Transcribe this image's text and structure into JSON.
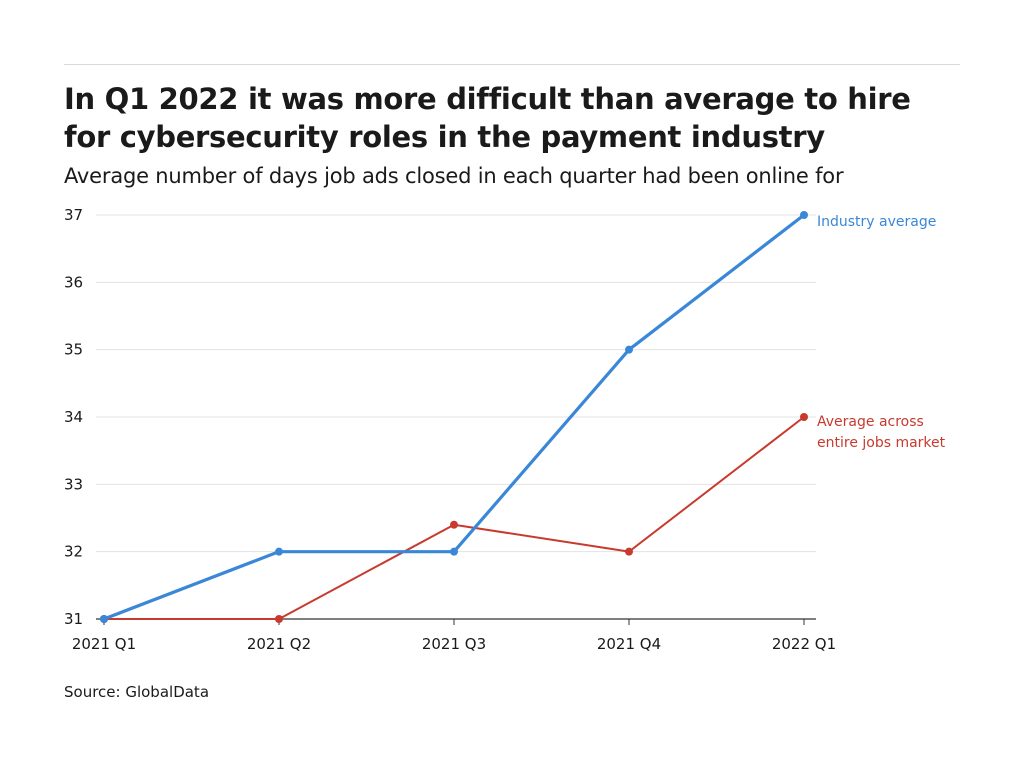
{
  "header": {
    "title": "In Q1 2022 it was more difficult than average to hire for cybersecurity roles in the payment industry",
    "subtitle": "Average number of days job ads closed in each quarter had been online for"
  },
  "footer": {
    "source": "Source: GlobalData"
  },
  "colors": {
    "industry": "#3a87d8",
    "market": "#c93a2e",
    "grid": "#e3e3e3",
    "axis": "#333333"
  },
  "chart_data": {
    "type": "line",
    "title": "In Q1 2022 it was more difficult than average to hire for cybersecurity roles in the payment industry",
    "subtitle": "Average number of days job ads closed in each quarter had been online for",
    "xlabel": "",
    "ylabel": "",
    "categories": [
      "2021 Q1",
      "2021 Q2",
      "2021 Q3",
      "2021 Q4",
      "2022 Q1"
    ],
    "yticks": [
      "31",
      "32",
      "33",
      "34",
      "35",
      "36",
      "37"
    ],
    "ylim": [
      31,
      37
    ],
    "grid": true,
    "legend": "direct labels at line ends (right)",
    "series": [
      {
        "name": "Industry average",
        "values": [
          31,
          32,
          32,
          35,
          37
        ],
        "color": "#3a87d8"
      },
      {
        "name": "Average across entire jobs market",
        "label_lines": [
          "Average across",
          "entire jobs market"
        ],
        "values": [
          31,
          31,
          32.4,
          32,
          34
        ],
        "color": "#c93a2e"
      }
    ]
  }
}
